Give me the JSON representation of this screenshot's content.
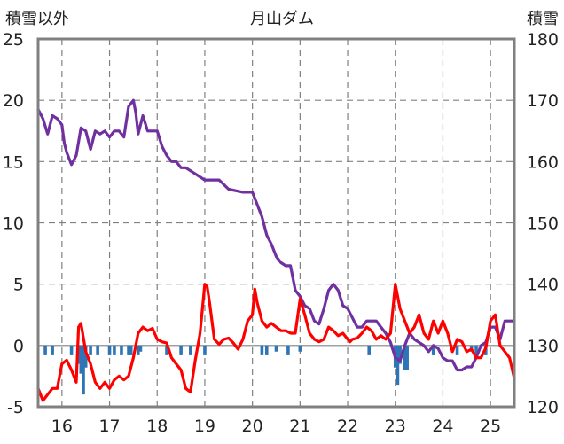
{
  "chart_data": {
    "type": "line",
    "title": "月山ダム",
    "left_axis": {
      "label": "積雪以外",
      "ylim": [
        -5,
        25
      ],
      "ticks": [
        "25",
        "20",
        "15",
        "10",
        "5",
        "0",
        "-5"
      ]
    },
    "right_axis": {
      "label": "積雪",
      "ylim": [
        120,
        180
      ],
      "ticks": [
        "180",
        "170",
        "160",
        "150",
        "140",
        "130",
        "120"
      ]
    },
    "x_axis": {
      "xlim": [
        15.5,
        25.5
      ],
      "ticks": [
        "16",
        "17",
        "18",
        "19",
        "20",
        "21",
        "22",
        "23",
        "24",
        "25"
      ]
    },
    "grid": true,
    "colors": {
      "snow": "#7030a0",
      "temperature": "#ff0000",
      "precip": "#2e75b6",
      "grid": "#808080",
      "frame": "#808080"
    },
    "series": [
      {
        "axis": "right",
        "role": "snow",
        "x": [
          15.5,
          15.6,
          15.7,
          15.8,
          15.9,
          16.0,
          16.05,
          16.1,
          16.2,
          16.3,
          16.4,
          16.5,
          16.6,
          16.7,
          16.8,
          16.9,
          17.0,
          17.1,
          17.2,
          17.3,
          17.4,
          17.5,
          17.55,
          17.6,
          17.7,
          17.8,
          17.9,
          18.0,
          18.1,
          18.2,
          18.3,
          18.4,
          18.5,
          18.6,
          18.8,
          19.0,
          19.1,
          19.3,
          19.5,
          19.8,
          20.0,
          20.05,
          20.2,
          20.3,
          20.4,
          20.5,
          20.6,
          20.7,
          20.8,
          20.9,
          21.0,
          21.1,
          21.2,
          21.3,
          21.4,
          21.5,
          21.6,
          21.7,
          21.8,
          21.9,
          22.0,
          22.1,
          22.2,
          22.3,
          22.4,
          22.5,
          22.6,
          22.7,
          22.8,
          22.9,
          23.0,
          23.1,
          23.2,
          23.3,
          23.4,
          23.5,
          23.6,
          23.7,
          23.8,
          23.9,
          24.0,
          24.1,
          24.2,
          24.3,
          24.4,
          24.5,
          24.6,
          24.7,
          24.8,
          24.9,
          25.0,
          25.1,
          25.2,
          25.3,
          25.4,
          25.5
        ],
        "values": [
          168.5,
          167,
          164.5,
          167.5,
          167,
          166,
          163,
          161.5,
          159.5,
          161,
          165.5,
          165,
          162,
          165,
          164.5,
          165,
          164,
          165,
          165,
          164,
          169,
          170,
          168,
          164.5,
          167.5,
          165,
          165,
          165,
          162.5,
          161,
          160,
          160,
          159,
          159,
          158,
          157,
          157,
          157,
          155.5,
          155,
          155,
          154,
          151,
          148,
          146.5,
          144.5,
          143.5,
          143,
          143,
          139,
          138,
          136.5,
          136,
          134,
          133.5,
          136,
          139,
          140,
          139,
          136.5,
          136,
          134.5,
          133,
          133,
          134,
          134,
          134,
          133,
          132,
          130.5,
          128,
          127.5,
          130,
          132,
          131,
          130.5,
          130,
          129,
          130,
          129.5,
          128,
          127.5,
          127.5,
          126,
          126,
          126.5,
          126.5,
          128,
          130,
          130.5,
          133,
          133,
          131,
          134,
          134,
          134
        ]
      },
      {
        "axis": "left",
        "role": "temperature",
        "x": [
          15.5,
          15.6,
          15.7,
          15.8,
          15.9,
          16.0,
          16.1,
          16.2,
          16.3,
          16.35,
          16.4,
          16.5,
          16.6,
          16.7,
          16.8,
          16.9,
          17.0,
          17.1,
          17.2,
          17.3,
          17.4,
          17.5,
          17.6,
          17.7,
          17.8,
          17.9,
          18.0,
          18.1,
          18.2,
          18.3,
          18.4,
          18.5,
          18.6,
          18.7,
          18.8,
          18.9,
          19.0,
          19.05,
          19.1,
          19.2,
          19.3,
          19.4,
          19.5,
          19.6,
          19.7,
          19.8,
          19.9,
          20.0,
          20.05,
          20.1,
          20.2,
          20.3,
          20.4,
          20.5,
          20.6,
          20.7,
          20.8,
          20.9,
          21.0,
          21.1,
          21.2,
          21.3,
          21.4,
          21.5,
          21.6,
          21.7,
          21.8,
          21.9,
          22.0,
          22.05,
          22.1,
          22.2,
          22.3,
          22.4,
          22.5,
          22.6,
          22.7,
          22.8,
          22.9,
          23.0,
          23.1,
          23.2,
          23.3,
          23.4,
          23.5,
          23.6,
          23.7,
          23.8,
          23.9,
          24.0,
          24.1,
          24.2,
          24.3,
          24.4,
          24.5,
          24.6,
          24.7,
          24.8,
          24.9,
          25.0,
          25.1,
          25.2,
          25.3,
          25.4,
          25.5
        ],
        "values": [
          -3.5,
          -4.5,
          -4,
          -3.5,
          -3.5,
          -1.5,
          -1.2,
          -2,
          -3,
          1.5,
          1.8,
          -0.5,
          -1.5,
          -3,
          -3.5,
          -3,
          -3.5,
          -2.8,
          -2.5,
          -2.8,
          -2.5,
          -1,
          1,
          1.5,
          1.2,
          1.4,
          0.5,
          0.3,
          0.2,
          -1,
          -1.5,
          -2,
          -3.5,
          -3.8,
          -1.2,
          1,
          5,
          4.8,
          3.5,
          0.5,
          0.1,
          0.5,
          0.6,
          0.2,
          -0.3,
          0.5,
          2,
          2.5,
          4.6,
          3.5,
          2,
          1.5,
          1.8,
          1.5,
          1.2,
          1.2,
          1,
          1,
          3.8,
          2.5,
          1,
          0.5,
          0.3,
          0.5,
          1.5,
          1.2,
          0.8,
          1,
          0.5,
          0.3,
          0.5,
          0.6,
          1,
          1.5,
          1.2,
          0.5,
          0.8,
          0.5,
          1,
          5,
          3,
          2,
          1,
          1.5,
          2.5,
          1,
          0.5,
          2,
          1,
          2,
          1,
          -0.5,
          0.5,
          0.3,
          -0.5,
          -0.3,
          -1,
          -1,
          -0.2,
          2,
          2.5,
          0,
          -0.5,
          -1,
          -2.7
        ]
      },
      {
        "axis": "left",
        "role": "precip",
        "type": "bar",
        "x": [
          15.65,
          15.8,
          16.2,
          16.35,
          16.4,
          16.45,
          16.5,
          16.6,
          16.75,
          17.0,
          17.1,
          17.25,
          17.4,
          17.45,
          17.6,
          17.65,
          18.2,
          18.5,
          18.7,
          19.0,
          20.2,
          20.3,
          20.5,
          20.75,
          21.0,
          22.45,
          23.0,
          23.05,
          23.1,
          23.2,
          23.25,
          23.8,
          24.3,
          24.6,
          24.7,
          24.9
        ],
        "values": [
          -0.8,
          -0.8,
          -0.8,
          -1.5,
          -2.3,
          -4,
          -1.8,
          -0.8,
          -0.8,
          -0.8,
          -0.8,
          -0.8,
          -0.8,
          -0.8,
          -0.8,
          -0.5,
          -0.8,
          -0.8,
          -0.8,
          -0.8,
          -0.8,
          -0.8,
          -0.5,
          -0.8,
          -0.5,
          -0.8,
          -1.8,
          -3.2,
          -1.5,
          -2,
          -2,
          -0.8,
          -0.8,
          -0.5,
          -0.8,
          -0.8
        ]
      }
    ]
  }
}
